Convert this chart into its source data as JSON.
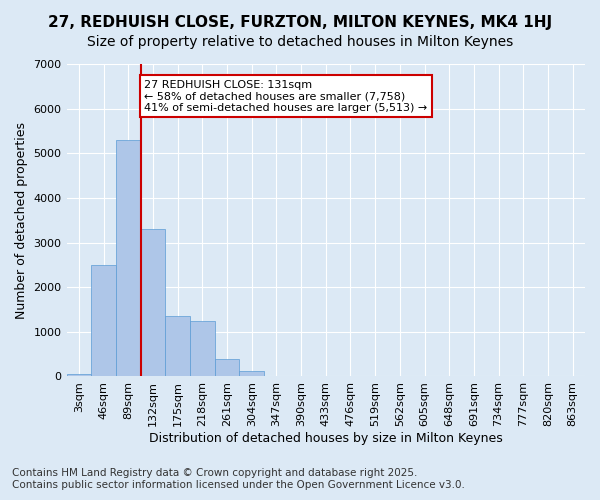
{
  "title_line1": "27, REDHUISH CLOSE, FURZTON, MILTON KEYNES, MK4 1HJ",
  "title_line2": "Size of property relative to detached houses in Milton Keynes",
  "xlabel": "Distribution of detached houses by size in Milton Keynes",
  "ylabel": "Number of detached properties",
  "bin_labels": [
    "3sqm",
    "46sqm",
    "89sqm",
    "132sqm",
    "175sqm",
    "218sqm",
    "261sqm",
    "304sqm",
    "347sqm",
    "390sqm",
    "433sqm",
    "476sqm",
    "519sqm",
    "562sqm",
    "605sqm",
    "648sqm",
    "691sqm",
    "734sqm",
    "777sqm",
    "820sqm",
    "863sqm"
  ],
  "bar_values": [
    50,
    2500,
    5300,
    3300,
    1350,
    1250,
    400,
    130,
    0,
    0,
    0,
    0,
    0,
    0,
    0,
    0,
    0,
    0,
    0,
    0,
    0
  ],
  "bar_color": "#aec6e8",
  "bar_edge_color": "#5b9bd5",
  "annotation_text": "27 REDHUISH CLOSE: 131sqm\n← 58% of detached houses are smaller (7,758)\n41% of semi-detached houses are larger (5,513) →",
  "annotation_box_color": "#ffffff",
  "annotation_box_edge_color": "#cc0000",
  "vline_color": "#cc0000",
  "ylim": [
    0,
    7000
  ],
  "yticks": [
    0,
    1000,
    2000,
    3000,
    4000,
    5000,
    6000,
    7000
  ],
  "footer_line1": "Contains HM Land Registry data © Crown copyright and database right 2025.",
  "footer_line2": "Contains public sector information licensed under the Open Government Licence v3.0.",
  "background_color": "#dce9f5",
  "plot_bg_color": "#dce9f5",
  "grid_color": "#ffffff",
  "title_fontsize": 11,
  "subtitle_fontsize": 10,
  "axis_label_fontsize": 9,
  "tick_fontsize": 8,
  "footer_fontsize": 7.5
}
